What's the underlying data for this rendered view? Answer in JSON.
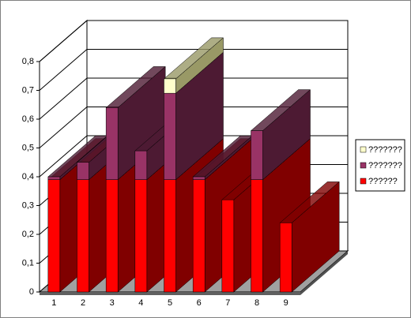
{
  "chart_data": {
    "type": "bar3d-stacked",
    "categories": [
      "1",
      "2",
      "3",
      "4",
      "5",
      "6",
      "7",
      "8",
      "9"
    ],
    "series": [
      {
        "name": "??????",
        "color": "#ff0000",
        "side": "#800000",
        "values": [
          0.39,
          0.39,
          0.39,
          0.39,
          0.39,
          0.39,
          0.32,
          0.39,
          0.24
        ]
      },
      {
        "name": "???????",
        "color": "#993366",
        "side": "#4d1a33",
        "values": [
          0.01,
          0.06,
          0.25,
          0.1,
          0.3,
          0.01,
          0,
          0.17,
          0
        ]
      },
      {
        "name": "???????",
        "color": "#ffffcc",
        "side": "#999966",
        "values": [
          0,
          0,
          0,
          0,
          0.05,
          0,
          0,
          0,
          0
        ]
      }
    ],
    "ylim": [
      0,
      0.8
    ],
    "yticks": [
      0,
      {
        "value": 0.1,
        "label": "0,1"
      },
      {
        "value": 0.2,
        "label": "0,2"
      },
      {
        "value": 0.3,
        "label": "0,3"
      },
      {
        "value": 0.4,
        "label": "0,4"
      },
      {
        "value": 0.5,
        "label": "0,5"
      },
      {
        "value": 0.6,
        "label": "0,6"
      },
      {
        "value": 0.7,
        "label": "0,7"
      },
      {
        "value": 0.8,
        "label": "0,8"
      }
    ],
    "grid": true
  }
}
